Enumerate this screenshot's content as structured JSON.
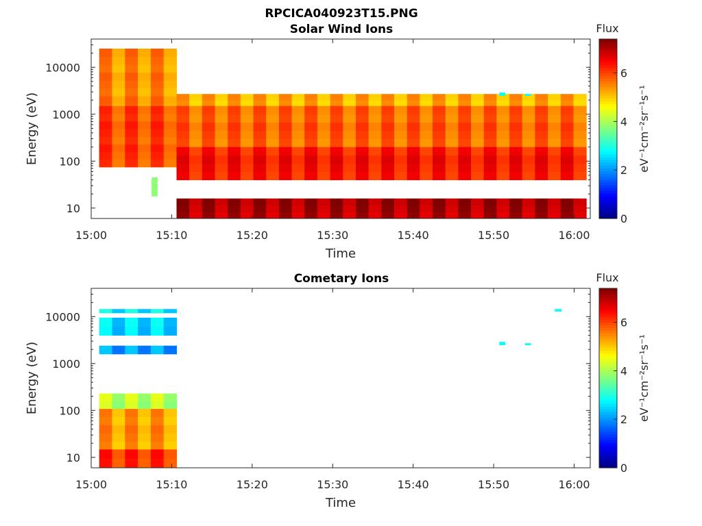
{
  "figure": {
    "title": "RPCICA040923T15.PNG"
  },
  "colorbar": {
    "label": "Flux",
    "unit_text": "eV⁻¹cm⁻²sr⁻¹s⁻¹",
    "range": [
      0,
      7.4
    ],
    "ticks": [
      "0",
      "2",
      "4",
      "6"
    ],
    "colormap": "jet"
  },
  "chart_data": [
    {
      "type": "heatmap",
      "title": "Solar Wind Ions",
      "xlabel": "Time",
      "ylabel": "Energy (eV)",
      "x_ticks": [
        "15:00",
        "15:10",
        "15:20",
        "15:30",
        "15:40",
        "15:50",
        "16:00"
      ],
      "xlim_minutes_after_15_00": [
        0,
        62
      ],
      "y_scale": "log",
      "y_ticks": [
        "10",
        "100",
        "1000",
        "10000"
      ],
      "ylim": [
        6,
        40000
      ],
      "grid": false,
      "blocks": [
        {
          "t0": 1.0,
          "t1": 10.6,
          "e0": 75,
          "e1": 25000,
          "flux": 5.5,
          "note": "early sweep, yellow-orange upper half"
        },
        {
          "t0": 1.0,
          "t1": 10.6,
          "e0": 75,
          "e1": 1500,
          "flux": 6.0
        },
        {
          "t0": 7.5,
          "t1": 8.2,
          "e0": 18,
          "e1": 45,
          "flux": 3.8
        },
        {
          "t0": 10.6,
          "t1": 61.5,
          "e0": 1500,
          "e1": 2700,
          "flux": 5.3
        },
        {
          "t0": 10.6,
          "t1": 61.5,
          "e0": 200,
          "e1": 1500,
          "flux": 5.8
        },
        {
          "t0": 10.6,
          "t1": 61.5,
          "e0": 40,
          "e1": 200,
          "flux": 6.4
        },
        {
          "t0": 10.6,
          "t1": 61.5,
          "e0": 6,
          "e1": 16,
          "flux": 7.1
        },
        {
          "t0": 50.7,
          "t1": 51.4,
          "e0": 2500,
          "e1": 2900,
          "flux": 2.8
        },
        {
          "t0": 53.9,
          "t1": 54.6,
          "e0": 2500,
          "e1": 2700,
          "flux": 2.8
        }
      ]
    },
    {
      "type": "heatmap",
      "title": "Cometary Ions",
      "xlabel": "Time",
      "ylabel": "Energy (eV)",
      "x_ticks": [
        "15:00",
        "15:10",
        "15:20",
        "15:30",
        "15:40",
        "15:50",
        "16:00"
      ],
      "xlim_minutes_after_15_00": [
        0,
        62
      ],
      "y_scale": "log",
      "y_ticks": [
        "10",
        "100",
        "1000",
        "10000"
      ],
      "ylim": [
        6,
        40000
      ],
      "grid": false,
      "blocks": [
        {
          "t0": 1.0,
          "t1": 10.6,
          "e0": 6,
          "e1": 15,
          "flux": 6.2
        },
        {
          "t0": 1.0,
          "t1": 10.6,
          "e0": 15,
          "e1": 110,
          "flux": 5.4
        },
        {
          "t0": 1.0,
          "t1": 10.6,
          "e0": 110,
          "e1": 230,
          "flux": 4.2
        },
        {
          "t0": 1.0,
          "t1": 10.6,
          "e0": 1600,
          "e1": 2400,
          "flux": 2.2
        },
        {
          "t0": 1.0,
          "t1": 10.6,
          "e0": 4000,
          "e1": 9500,
          "flux": 2.6
        },
        {
          "t0": 1.0,
          "t1": 10.6,
          "e0": 12000,
          "e1": 14500,
          "flux": 2.8
        },
        {
          "t0": 50.7,
          "t1": 51.4,
          "e0": 2500,
          "e1": 2900,
          "flux": 2.8
        },
        {
          "t0": 53.9,
          "t1": 54.6,
          "e0": 2500,
          "e1": 2700,
          "flux": 2.8
        },
        {
          "t0": 57.6,
          "t1": 58.4,
          "e0": 13000,
          "e1": 14500,
          "flux": 2.8
        }
      ]
    }
  ]
}
